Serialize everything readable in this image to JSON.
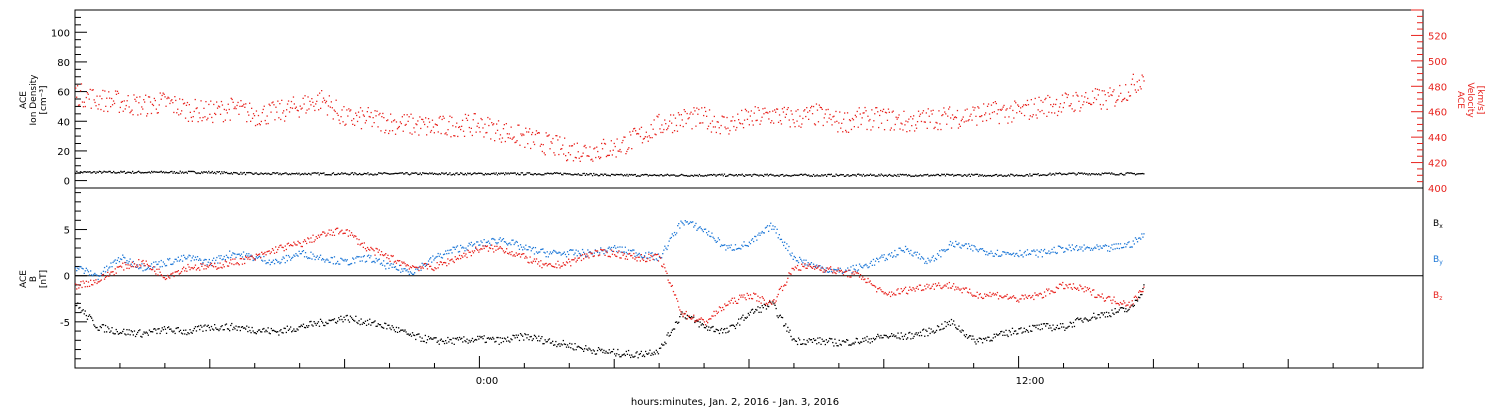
{
  "chart_data": [
    {
      "type": "scatter",
      "panel": "plasma",
      "ylabel_left": [
        "ACE",
        "Ion Density",
        "[cm⁻³]"
      ],
      "ylabel_right": [
        "ACE",
        "Velocity",
        "[km/s]"
      ],
      "left_axis": {
        "ylim": [
          -5,
          115
        ],
        "ticks": [
          0,
          20,
          40,
          60,
          80,
          100
        ]
      },
      "right_axis": {
        "ylim": [
          400,
          540
        ],
        "ticks": [
          400,
          420,
          440,
          460,
          480,
          500,
          520
        ]
      },
      "x_range_hours": [
        -9,
        21
      ],
      "series": [
        {
          "axis": "left",
          "color": "#000000",
          "x": [
            -9,
            -8,
            -7,
            -6,
            -5,
            -4,
            -3,
            -2,
            -1,
            0,
            1,
            2,
            3,
            4,
            5,
            6,
            7,
            8,
            9,
            10,
            11,
            12,
            13,
            14,
            14.8
          ],
          "y": [
            6,
            6,
            6,
            6,
            5,
            5,
            5,
            5,
            5,
            5,
            5,
            5,
            4,
            4,
            4,
            4,
            4,
            4,
            4,
            4,
            4,
            4,
            5,
            5,
            5
          ]
        },
        {
          "axis": "right",
          "color": "#e8231e",
          "x": [
            -9,
            -8.5,
            -8,
            -7.5,
            -7,
            -6.5,
            -6,
            -5.5,
            -5,
            -4.5,
            -4,
            -3.5,
            -3,
            -2.5,
            -2,
            -1.5,
            -1,
            -0.5,
            0,
            0.5,
            1,
            1.5,
            2,
            2.5,
            3,
            3.5,
            4,
            4.5,
            5,
            5.5,
            6,
            6.5,
            7,
            7.5,
            8,
            8.5,
            9,
            9.5,
            10,
            10.5,
            11,
            11.5,
            12,
            12.5,
            13,
            13.5,
            14,
            14.5,
            14.8
          ],
          "y": [
            475,
            470,
            468,
            465,
            468,
            462,
            460,
            463,
            458,
            460,
            465,
            470,
            455,
            455,
            452,
            450,
            448,
            450,
            450,
            445,
            440,
            435,
            430,
            430,
            432,
            440,
            450,
            455,
            455,
            450,
            455,
            458,
            455,
            458,
            452,
            455,
            455,
            452,
            455,
            456,
            458,
            460,
            460,
            465,
            467,
            470,
            470,
            480,
            490
          ]
        }
      ]
    },
    {
      "type": "scatter",
      "panel": "magnetic-field",
      "ylabel_left": [
        "ACE",
        "B",
        "[nT]"
      ],
      "ylim": [
        -10,
        9.5
      ],
      "ticks": [
        -5,
        0,
        5
      ],
      "x_range_hours": [
        -9,
        21
      ],
      "xticks_labeled": [
        "0:00",
        "12:00"
      ],
      "xlabel": "hours:minutes, Jan.  2, 2016 - Jan.  3, 2016",
      "series": [
        {
          "name": "Bx",
          "color": "#000000",
          "x": [
            -9,
            -8.5,
            -8,
            -7.5,
            -7,
            -6.5,
            -6,
            -5.5,
            -5,
            -4.5,
            -4,
            -3.5,
            -3,
            -2.5,
            -2,
            -1.5,
            -1,
            -0.5,
            0,
            0.5,
            1,
            1.5,
            2,
            2.5,
            3,
            3.5,
            4,
            4.5,
            5,
            5.5,
            6,
            6.5,
            7,
            7.5,
            8,
            8.5,
            9,
            9.5,
            10,
            10.5,
            11,
            11.5,
            12,
            12.5,
            13,
            13.5,
            14,
            14.5,
            14.8
          ],
          "y": [
            -3,
            -5.5,
            -6,
            -6.2,
            -5.8,
            -6,
            -5.5,
            -5.5,
            -5.8,
            -6,
            -5.5,
            -5,
            -4.5,
            -5,
            -5.5,
            -6.5,
            -7,
            -7,
            -6.8,
            -7,
            -6.5,
            -7,
            -7.5,
            -8,
            -8.3,
            -8.5,
            -8,
            -4,
            -5.5,
            -6,
            -4,
            -3,
            -7,
            -7,
            -7.2,
            -7,
            -6.5,
            -6.5,
            -6,
            -5,
            -7,
            -6.5,
            -5.8,
            -5.5,
            -5.5,
            -4.5,
            -4,
            -3.5,
            -1
          ]
        },
        {
          "name": "By",
          "color": "#1e78d7",
          "x": [
            -9,
            -8.5,
            -8,
            -7.5,
            -7,
            -6.5,
            -6,
            -5.5,
            -5,
            -4.5,
            -4,
            -3.5,
            -3,
            -2.5,
            -2,
            -1.5,
            -1,
            -0.5,
            0,
            0.5,
            1,
            1.5,
            2,
            2.5,
            3,
            3.5,
            4,
            4.5,
            5,
            5.5,
            6,
            6.5,
            7,
            7.5,
            8,
            8.5,
            9,
            9.5,
            10,
            10.5,
            11,
            11.5,
            12,
            12.5,
            13,
            13.5,
            14,
            14.5,
            14.8
          ],
          "y": [
            1,
            0,
            2,
            1,
            1.5,
            2,
            1.5,
            2.5,
            2,
            1.5,
            2.5,
            2,
            1.5,
            2,
            1,
            0.5,
            2,
            3,
            3.5,
            4,
            3,
            2.5,
            2.5,
            2.5,
            3,
            2.5,
            2,
            6,
            5,
            3,
            3.5,
            5.5,
            2,
            1,
            0.5,
            1,
            2,
            3,
            1.5,
            3.5,
            3,
            2.5,
            2.5,
            2.5,
            3,
            3,
            3,
            3.5,
            4.5
          ]
        },
        {
          "name": "Bz",
          "color": "#e8231e",
          "x": [
            -9,
            -8.5,
            -8,
            -7.5,
            -7,
            -6.5,
            -6,
            -5.5,
            -5,
            -4.5,
            -4,
            -3.5,
            -3,
            -2.5,
            -2,
            -1.5,
            -1,
            -0.5,
            0,
            0.5,
            1,
            1.5,
            2,
            2.5,
            3,
            3.5,
            4,
            4.5,
            5,
            5.5,
            6,
            6.5,
            7,
            7.5,
            8,
            8.5,
            9,
            9.5,
            10,
            10.5,
            11,
            11.5,
            12,
            12.5,
            13,
            13.5,
            14,
            14.5,
            14.8
          ],
          "y": [
            -1,
            -0.5,
            1,
            1.5,
            0,
            1,
            1,
            1.5,
            2,
            3,
            3.5,
            4.5,
            5,
            3,
            2,
            1,
            1,
            2,
            3,
            3,
            2,
            1,
            1.5,
            2.5,
            2.5,
            2,
            2,
            -4,
            -5,
            -3,
            -2,
            -3,
            1,
            1,
            0.5,
            0,
            -2,
            -1.5,
            -1,
            -1,
            -2,
            -2,
            -2.5,
            -2,
            -1,
            -1.5,
            -2.5,
            -3,
            -1
          ]
        }
      ],
      "legend": [
        {
          "base": "B",
          "sub": "x",
          "color": "#000000"
        },
        {
          "base": "B",
          "sub": "y",
          "color": "#1e78d7"
        },
        {
          "base": "B",
          "sub": "z",
          "color": "#e8231e"
        }
      ]
    }
  ]
}
